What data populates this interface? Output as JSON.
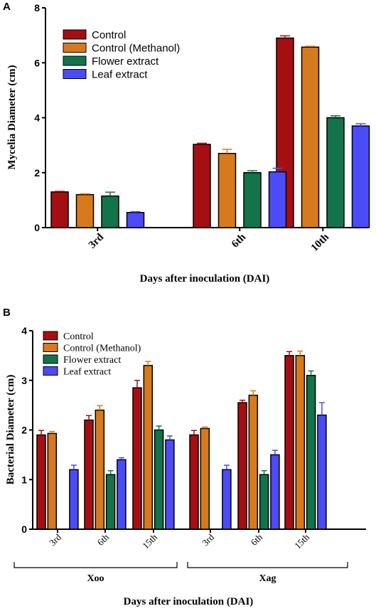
{
  "colors": {
    "Control": "#a50f12",
    "Control (Methanol)": "#d7791d",
    "Flower extract": "#13734a",
    "Leaf extract": "#4b4bf7"
  },
  "chart_data": [
    {
      "panel": "A",
      "type": "bar",
      "ylabel": "Mycelia Diameter (cm)",
      "xlabel": "Days after inoculation (DAI)",
      "ylim": [
        0,
        8
      ],
      "yticks": [
        0,
        2,
        4,
        6,
        8
      ],
      "categories": [
        "3rd",
        "6th",
        "10th"
      ],
      "legend_position": "top-left",
      "series": [
        {
          "name": "Control",
          "values": [
            1.3,
            3.03,
            6.9
          ],
          "errors": [
            0.02,
            0.04,
            0.08
          ]
        },
        {
          "name": "Control (Methanol)",
          "values": [
            1.2,
            2.7,
            6.57
          ],
          "errors": [
            0.03,
            0.15,
            0.03
          ]
        },
        {
          "name": "Flower extract",
          "values": [
            1.15,
            2.0,
            4.0
          ],
          "errors": [
            0.14,
            0.07,
            0.07
          ]
        },
        {
          "name": "Leaf extract",
          "values": [
            0.55,
            2.03,
            3.7
          ],
          "errors": [
            0.03,
            0.13,
            0.08
          ]
        }
      ]
    },
    {
      "panel": "B",
      "type": "bar",
      "ylabel": "Bacterial Diameter (cm)",
      "xlabel": "Days after inoculation (DAI)",
      "ylim": [
        0,
        4
      ],
      "yticks": [
        0,
        1,
        2,
        3,
        4
      ],
      "groups": [
        "Xoo",
        "Xag"
      ],
      "categories": [
        "3rd",
        "6th",
        "15th",
        "3rd",
        "6th",
        "15th"
      ],
      "legend_position": "top-left",
      "series": [
        {
          "name": "Control",
          "values": [
            1.9,
            2.2,
            2.85,
            1.9,
            2.55,
            3.5
          ],
          "errors": [
            0.09,
            0.09,
            0.15,
            0.09,
            0.05,
            0.08
          ]
        },
        {
          "name": "Control (Methanol)",
          "values": [
            1.93,
            2.4,
            3.3,
            2.03,
            2.7,
            3.5
          ],
          "errors": [
            0.04,
            0.09,
            0.08,
            0.03,
            0.09,
            0.09
          ]
        },
        {
          "name": "Flower extract",
          "values": [
            null,
            1.1,
            2.0,
            null,
            1.1,
            3.1
          ],
          "errors": [
            null,
            0.08,
            0.08,
            null,
            0.08,
            0.09
          ]
        },
        {
          "name": "Leaf extract",
          "values": [
            1.2,
            1.4,
            1.8,
            1.2,
            1.5,
            2.3
          ],
          "errors": [
            0.09,
            0.04,
            0.08,
            0.09,
            0.09,
            0.25
          ]
        }
      ]
    }
  ]
}
